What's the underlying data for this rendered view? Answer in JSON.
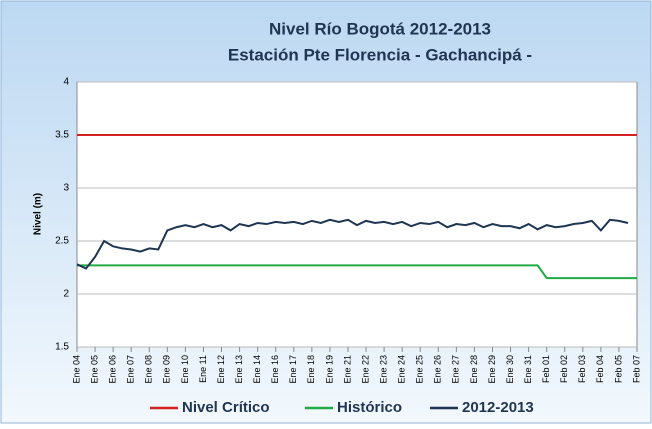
{
  "chart_data": {
    "type": "line",
    "title": "Nivel Río Bogotá 2012-2013",
    "subtitle": "Estación Pte Florencia - Gachancipá -",
    "y_label": "Nivel (m)",
    "categories": [
      "Ene 04",
      null,
      "Ene 05",
      null,
      "Ene 06",
      null,
      "Ene 07",
      null,
      "Ene 08",
      null,
      "Ene 09",
      null,
      "Ene 10",
      null,
      "Ene 11",
      null,
      "Ene 12",
      null,
      "Ene 13",
      null,
      "Ene 14",
      null,
      "Ene 16",
      null,
      "Ene 17",
      null,
      "Ene 18",
      null,
      "Ene 19",
      null,
      "Ene 21",
      null,
      "Ene 22",
      null,
      "Ene 23",
      null,
      "Ene 24",
      null,
      "Ene 25",
      null,
      "Ene 26",
      null,
      "Ene 27",
      null,
      "Ene 28",
      null,
      "Ene 29",
      null,
      "Ene 30",
      null,
      "Ene 31",
      null,
      "Feb 01",
      null,
      "Feb 02",
      null,
      "Feb 03",
      null,
      "Feb 04",
      null,
      "Feb 05",
      null,
      "Feb 07"
    ],
    "series": [
      {
        "name": "Nivel Crítico",
        "color": "#d42020",
        "values": [
          3.5,
          3.5,
          3.5,
          3.5,
          3.5,
          3.5,
          3.5,
          3.5,
          3.5,
          3.5,
          3.5,
          3.5,
          3.5,
          3.5,
          3.5,
          3.5,
          3.5,
          3.5,
          3.5,
          3.5,
          3.5,
          3.5,
          3.5,
          3.5,
          3.5,
          3.5,
          3.5,
          3.5,
          3.5,
          3.5,
          3.5,
          3.5,
          3.5,
          3.5,
          3.5,
          3.5,
          3.5,
          3.5,
          3.5,
          3.5,
          3.5,
          3.5,
          3.5,
          3.5,
          3.5,
          3.5,
          3.5,
          3.5,
          3.5,
          3.5,
          3.5,
          3.5,
          3.5,
          3.5,
          3.5,
          3.5,
          3.5,
          3.5,
          3.5,
          3.5,
          3.5,
          3.5,
          3.5
        ]
      },
      {
        "name": "Histórico",
        "color": "#22aa44",
        "values": [
          2.27,
          2.27,
          2.27,
          2.27,
          2.27,
          2.27,
          2.27,
          2.27,
          2.27,
          2.27,
          2.27,
          2.27,
          2.27,
          2.27,
          2.27,
          2.27,
          2.27,
          2.27,
          2.27,
          2.27,
          2.27,
          2.27,
          2.27,
          2.27,
          2.27,
          2.27,
          2.27,
          2.27,
          2.27,
          2.27,
          2.27,
          2.27,
          2.27,
          2.27,
          2.27,
          2.27,
          2.27,
          2.27,
          2.27,
          2.27,
          2.27,
          2.27,
          2.27,
          2.27,
          2.27,
          2.27,
          2.27,
          2.27,
          2.27,
          2.27,
          2.27,
          2.27,
          2.15,
          2.15,
          2.15,
          2.15,
          2.15,
          2.15,
          2.15,
          2.15,
          2.15,
          2.15,
          2.15
        ]
      },
      {
        "name": "2012-2013",
        "color": "#1f3552",
        "values": [
          2.28,
          2.24,
          2.35,
          2.5,
          2.45,
          2.43,
          2.42,
          2.4,
          2.43,
          2.42,
          2.6,
          2.63,
          2.65,
          2.63,
          2.66,
          2.63,
          2.65,
          2.6,
          2.66,
          2.64,
          2.67,
          2.66,
          2.68,
          2.67,
          2.68,
          2.66,
          2.69,
          2.67,
          2.7,
          2.68,
          2.7,
          2.65,
          2.69,
          2.67,
          2.68,
          2.66,
          2.68,
          2.64,
          2.67,
          2.66,
          2.68,
          2.63,
          2.66,
          2.65,
          2.67,
          2.63,
          2.66,
          2.64,
          2.64,
          2.62,
          2.66,
          2.61,
          2.65,
          2.63,
          2.64,
          2.66,
          2.67,
          2.69,
          2.6,
          2.7,
          2.69,
          2.67,
          null
        ]
      }
    ],
    "ylim": [
      1.5,
      4
    ],
    "yticks": [
      1.5,
      2,
      2.5,
      3,
      3.5,
      4
    ],
    "grid": true,
    "legend": "bottom"
  }
}
